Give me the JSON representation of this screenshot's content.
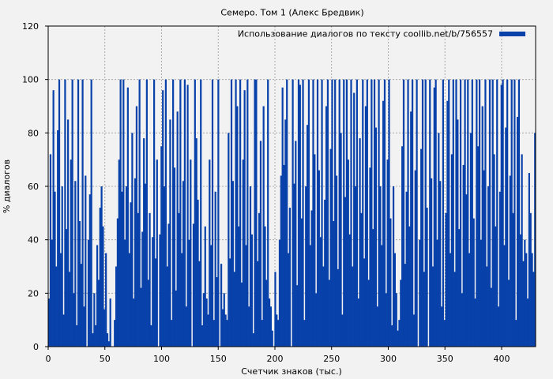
{
  "chart_data": {
    "type": "bar",
    "title": "Семеро. Том 1 (Алекс Бредвик)",
    "xlabel": "Счетчик знаков (тыс.)",
    "ylabel": "% диалогов",
    "xlim": [
      0,
      430
    ],
    "ylim": [
      0,
      120
    ],
    "x_ticks": [
      0,
      50,
      100,
      150,
      200,
      250,
      300,
      350,
      400
    ],
    "y_ticks": [
      0,
      20,
      40,
      60,
      80,
      100,
      120
    ],
    "grid": true,
    "legend_position": "top-right",
    "series": [
      {
        "name": "Использование диалогов по тексту coollib.net/b/756557",
        "color": "#0841aa",
        "values": [
          18,
          72,
          40,
          96,
          58,
          30,
          81,
          100,
          35,
          60,
          12,
          100,
          44,
          85,
          28,
          70,
          100,
          20,
          62,
          8,
          100,
          47,
          31,
          100,
          15,
          64,
          0,
          40,
          57,
          100,
          5,
          20,
          8,
          38,
          25,
          52,
          60,
          45,
          14,
          35,
          5,
          2,
          18,
          0,
          0,
          10,
          30,
          48,
          70,
          100,
          58,
          100,
          40,
          60,
          97,
          35,
          54,
          80,
          18,
          63,
          90,
          50,
          100,
          22,
          43,
          78,
          61,
          100,
          25,
          50,
          8,
          41,
          100,
          33,
          70,
          0,
          42,
          75,
          96,
          60,
          100,
          30,
          46,
          85,
          10,
          100,
          67,
          21,
          88,
          50,
          100,
          35,
          62,
          100,
          15,
          98,
          40,
          70,
          0,
          46,
          100,
          78,
          55,
          32,
          100,
          8,
          20,
          45,
          18,
          12,
          70,
          38,
          100,
          10,
          58,
          26,
          100,
          0,
          31,
          14,
          20,
          12,
          10,
          80,
          33,
          100,
          62,
          28,
          100,
          90,
          45,
          100,
          24,
          70,
          96,
          38,
          100,
          15,
          60,
          42,
          5,
          100,
          100,
          32,
          50,
          77,
          10,
          90,
          45,
          25,
          100,
          18,
          15,
          6,
          0,
          28,
          12,
          10,
          40,
          64,
          97,
          68,
          85,
          100,
          35,
          52,
          0,
          100,
          61,
          77,
          23,
          100,
          98,
          48,
          100,
          10,
          60,
          83,
          100,
          38,
          51,
          100,
          72,
          20,
          100,
          66,
          41,
          100,
          30,
          55,
          90,
          100,
          25,
          74,
          100,
          47,
          100,
          64,
          29,
          100,
          80,
          12,
          100,
          56,
          100,
          70,
          42,
          100,
          30,
          95,
          60,
          100,
          18,
          78,
          50,
          100,
          33,
          90,
          100,
          25,
          67,
          100,
          44,
          100,
          82,
          15,
          100,
          60,
          38,
          92,
          100,
          20,
          70,
          100,
          48,
          8,
          60,
          35,
          20,
          6,
          10,
          25,
          75,
          100,
          31,
          58,
          100,
          45,
          88,
          100,
          12,
          66,
          100,
          0,
          40,
          74,
          100,
          28,
          100,
          52,
          0,
          100,
          63,
          30,
          97,
          100,
          40,
          80,
          62,
          15,
          100,
          10,
          50,
          92,
          100,
          35,
          72,
          100,
          28,
          100,
          85,
          44,
          100,
          20,
          68,
          100,
          57,
          100,
          35,
          80,
          100,
          48,
          18,
          100,
          75,
          100,
          40,
          90,
          66,
          100,
          30,
          60,
          100,
          22,
          100,
          72,
          45,
          100,
          15,
          58,
          98,
          100,
          38,
          82,
          100,
          25,
          64,
          100,
          50,
          100,
          10,
          86,
          100,
          42,
          72,
          32,
          40,
          35,
          18,
          65,
          50,
          35,
          28,
          80
        ]
      }
    ]
  }
}
